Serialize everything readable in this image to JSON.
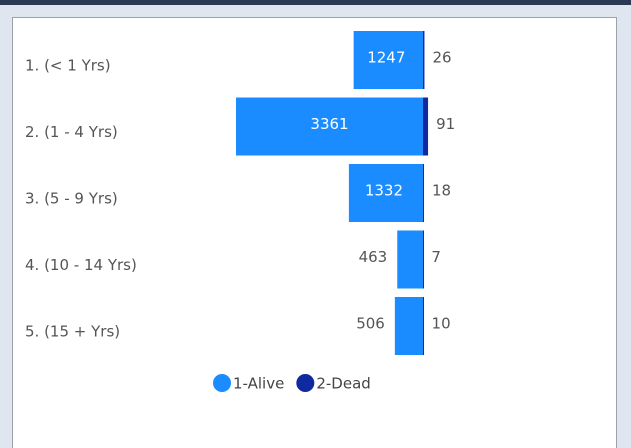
{
  "chart_data": {
    "type": "diverging-bar",
    "categories": [
      "1. (< 1 Yrs)",
      "2. (1 - 4 Yrs)",
      "3. (5 - 9 Yrs)",
      "4. (10 - 14 Yrs)",
      "5. (15 + Yrs)"
    ],
    "series": [
      {
        "name": "1-Alive",
        "color": "#1a8cff",
        "values": [
          1247,
          3361,
          1332,
          463,
          506
        ]
      },
      {
        "name": "2-Dead",
        "color": "#0f2aa0",
        "values": [
          26,
          91,
          18,
          7,
          10
        ]
      }
    ],
    "legend": "bottom"
  }
}
